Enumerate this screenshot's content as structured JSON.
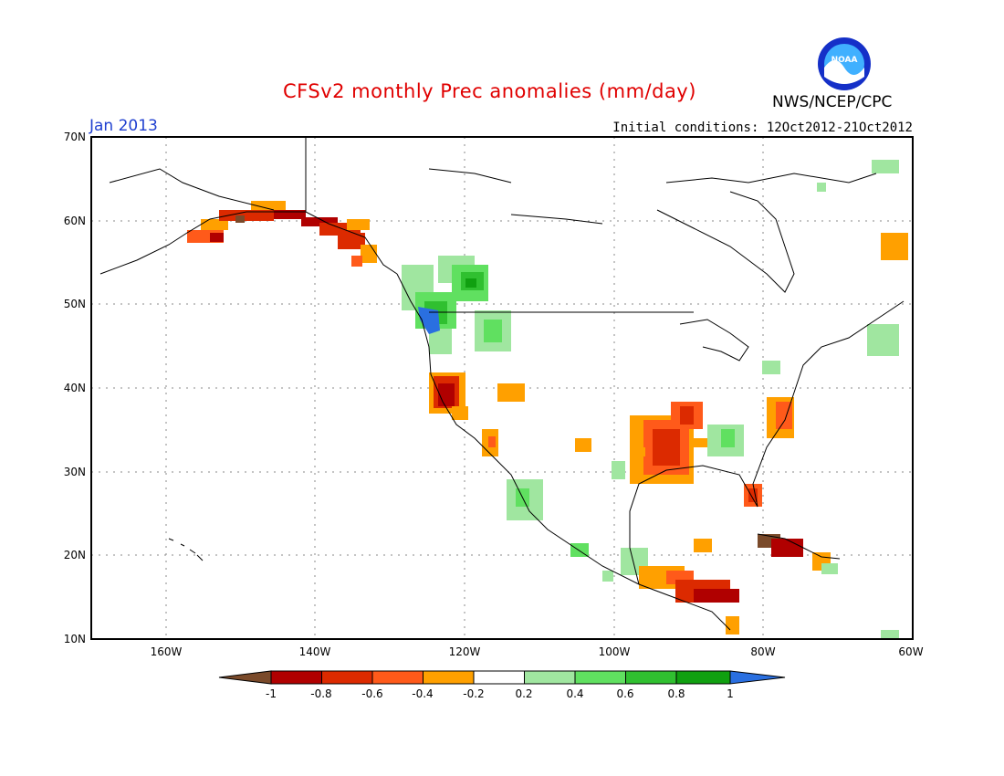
{
  "header": {
    "title": "CFSv2 monthly Prec anomalies (mm/day)",
    "agency": "NWS/NCEP/CPC",
    "logo_text": "NOAA",
    "month": "Jan 2013",
    "initial_conditions": "Initial conditions: 12Oct2012-21Oct2012"
  },
  "map": {
    "lat_labels": [
      "70N",
      "60N",
      "50N",
      "40N",
      "30N",
      "20N",
      "10N"
    ],
    "lon_labels": [
      "160W",
      "140W",
      "120W",
      "100W",
      "80W",
      "60W"
    ]
  },
  "colors": {
    "brown": "#7a4a2a",
    "dark_red": "#b00000",
    "red": "#dc2a00",
    "orange_red": "#ff5a1a",
    "orange": "#ffa000",
    "white": "#ffffff",
    "light_green": "#a0e6a0",
    "green1": "#60e060",
    "green2": "#30c030",
    "green3": "#10a010",
    "blue": "#2a6fe0"
  },
  "legend": {
    "tick_labels": [
      "-1",
      "-0.8",
      "-0.6",
      "-0.4",
      "-0.2",
      "0.2",
      "0.4",
      "0.6",
      "0.8",
      "1"
    ]
  }
}
